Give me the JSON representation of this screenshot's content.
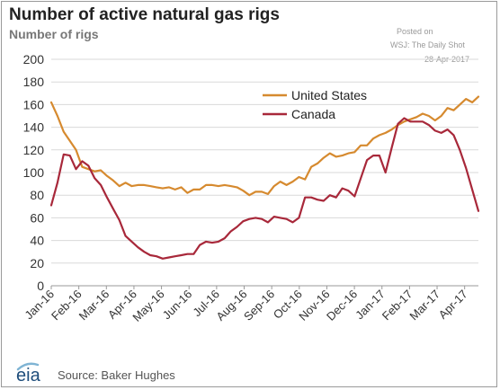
{
  "header": {
    "title": "Number of active natural gas rigs",
    "subtitle": "Number of rigs"
  },
  "stamp": {
    "posted": "Posted on",
    "source": "WSJ: The Daily Shot",
    "date": "28-Apr-2017"
  },
  "footer": {
    "logo_text": "eia",
    "source": "Source: Baker Hughes"
  },
  "colors": {
    "united_states": "#d68a2f",
    "canada": "#a8283a",
    "grid": "#d9d9d9",
    "axis_text": "#333333"
  },
  "chart_data": {
    "type": "line",
    "title": "Number of active natural gas rigs",
    "ylabel": "Number of rigs",
    "xlabel": "",
    "ylim": [
      0,
      200
    ],
    "yticks": [
      0,
      20,
      40,
      60,
      80,
      100,
      120,
      140,
      160,
      180,
      200
    ],
    "xticks": [
      "Jan-16",
      "Feb-16",
      "Mar-16",
      "Apr-16",
      "May-16",
      "Jun-16",
      "Jul-16",
      "Aug-16",
      "Sep-16",
      "Oct-16",
      "Nov-16",
      "Dec-16",
      "Jan-17",
      "Feb-17",
      "Mar-17",
      "Apr-17"
    ],
    "x_range": [
      0,
      69
    ],
    "grid": "horizontal",
    "legend_position": "upper-right",
    "series": [
      {
        "name": "United States",
        "values": [
          162,
          150,
          136,
          128,
          120,
          105,
          103,
          101,
          102,
          97,
          93,
          88,
          91,
          88,
          89,
          89,
          88,
          87,
          86,
          87,
          85,
          87,
          82,
          85,
          85,
          89,
          89,
          88,
          89,
          88,
          87,
          84,
          80,
          83,
          83,
          81,
          88,
          92,
          89,
          92,
          96,
          94,
          105,
          108,
          113,
          117,
          114,
          115,
          117,
          118,
          124,
          124,
          130,
          133,
          135,
          138,
          142,
          145,
          147,
          149,
          152,
          150,
          146,
          150,
          157,
          155,
          160,
          165,
          162,
          167
        ]
      },
      {
        "name": "Canada",
        "values": [
          71,
          91,
          116,
          115,
          103,
          110,
          106,
          95,
          89,
          78,
          68,
          58,
          44,
          39,
          34,
          30,
          27,
          26,
          24,
          25,
          26,
          27,
          28,
          28,
          36,
          39,
          38,
          39,
          42,
          48,
          52,
          57,
          59,
          60,
          59,
          56,
          61,
          60,
          59,
          56,
          60,
          78,
          78,
          76,
          75,
          80,
          78,
          86,
          84,
          79,
          95,
          111,
          115,
          115,
          100,
          122,
          143,
          148,
          145,
          145,
          145,
          142,
          137,
          135,
          138,
          133,
          120,
          104,
          85,
          66
        ]
      }
    ]
  }
}
